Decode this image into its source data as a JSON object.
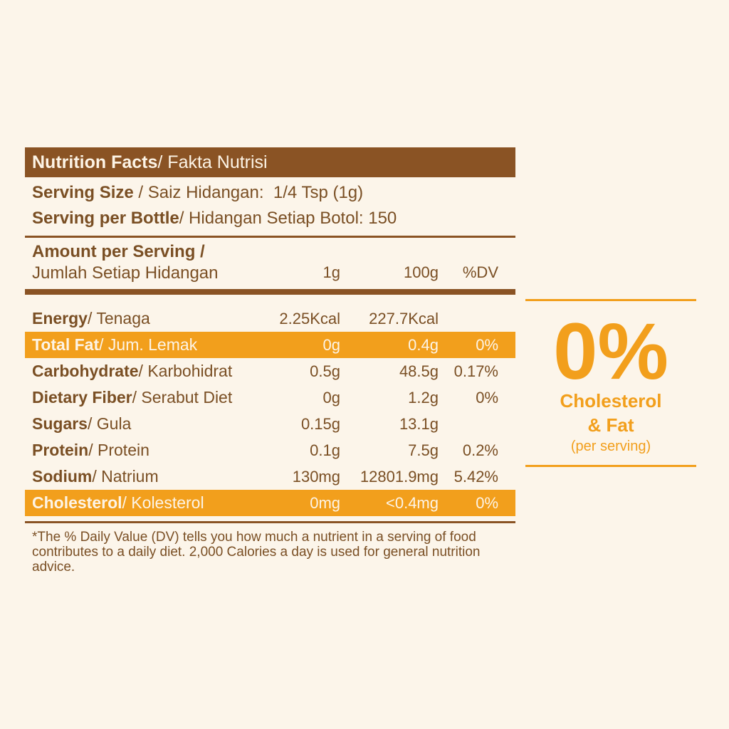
{
  "header": {
    "title_bold": "Nutrition Facts",
    "title_rest": " / Fakta Nutrisi"
  },
  "serving": {
    "size_bold": "Serving Size",
    "size_rest": " / Saiz Hidangan:  1/4 Tsp (1g)",
    "per_bottle_bold": "Serving per Bottle",
    "per_bottle_rest": " / Hidangan Setiap Botol: 150"
  },
  "amount": {
    "line1": "Amount per Serving /",
    "line2": "Jumlah Setiap Hidangan",
    "col1": "1g",
    "col2": "100g",
    "col3": "%DV"
  },
  "rows": [
    {
      "bold": "Energy",
      "rest": " / Tenaga",
      "v1": "2.25Kcal",
      "v2": "227.7Kcal",
      "v3": ""
    },
    {
      "bold": "Total Fat",
      "rest": " / Jum. Lemak",
      "v1": "0g",
      "v2": "0.4g",
      "v3": "0%"
    },
    {
      "bold": "Carbohydrate",
      "rest": " / Karbohidrat",
      "v1": "0.5g",
      "v2": "48.5g",
      "v3": "0.17%"
    },
    {
      "bold": "Dietary Fiber",
      "rest": " / Serabut Diet",
      "v1": "0g",
      "v2": "1.2g",
      "v3": "0%"
    },
    {
      "bold": "Sugars",
      "rest": " / Gula",
      "v1": "0.15g",
      "v2": "13.1g",
      "v3": ""
    },
    {
      "bold": "Protein",
      "rest": " / Protein",
      "v1": "0.1g",
      "v2": "7.5g",
      "v3": "0.2%"
    },
    {
      "bold": "Sodium",
      "rest": " / Natrium",
      "v1": "130mg",
      "v2": "12801.9mg",
      "v3": "5.42%"
    },
    {
      "bold": "Cholesterol",
      "rest": " / Kolesterol",
      "v1": "0mg",
      "v2": "<0.4mg",
      "v3": "0%"
    }
  ],
  "footnote": "*The % Daily Value (DV) tells you how much a nutrient in a serving of food contributes to a daily diet. 2,000 Calories a day is used for general nutrition advice.",
  "badge": {
    "big": "0%",
    "line1": "Cholesterol",
    "line2": "& Fat",
    "note": "(per serving)"
  },
  "colors": {
    "brown": "#8a5324",
    "orange": "#f29f1c",
    "background": "#fcf5ea"
  }
}
